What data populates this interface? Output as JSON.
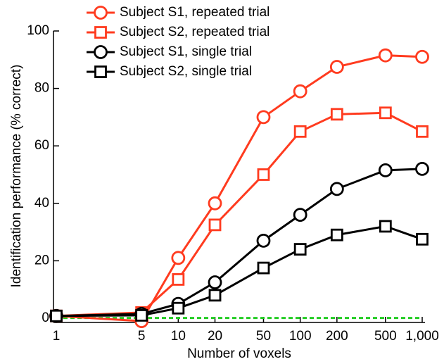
{
  "chart_data": {
    "type": "line",
    "x_label": "Number of voxels",
    "y_label": "Identification performance (% correct)",
    "x": [
      1,
      5,
      10,
      20,
      50,
      100,
      200,
      500,
      1000
    ],
    "series": [
      {
        "name": "Subject S1, repeated trial",
        "color": "#ff3b1f",
        "marker": "circle",
        "values": [
          0.8,
          -1,
          21,
          40,
          70,
          79,
          87.5,
          91.5,
          91
        ]
      },
      {
        "name": "Subject S2, repeated trial",
        "color": "#ff3b1f",
        "marker": "square",
        "values": [
          0.8,
          2,
          13.5,
          32.5,
          50,
          65,
          71,
          71.5,
          65
        ]
      },
      {
        "name": "Subject S1, single trial",
        "color": "#000000",
        "marker": "circle",
        "values": [
          0.8,
          1.5,
          5,
          12.5,
          27,
          36,
          45,
          51.5,
          52
        ]
      },
      {
        "name": "Subject S2, single trial",
        "color": "#000000",
        "marker": "square",
        "values": [
          0.8,
          1,
          3.5,
          8,
          17.5,
          24,
          29,
          32,
          27.5
        ]
      }
    ],
    "chance_line": {
      "value": 0.1,
      "color": "#22cc22"
    },
    "xscale": "log",
    "xlim": [
      1,
      1000
    ],
    "xticks": [
      1,
      5,
      10,
      20,
      50,
      100,
      200,
      500,
      {
        "value": 1000,
        "label": "1,000"
      }
    ],
    "ylim": [
      0,
      100
    ],
    "yticks": [
      0,
      20,
      40,
      60,
      80,
      100
    ],
    "legend": "top-left"
  }
}
